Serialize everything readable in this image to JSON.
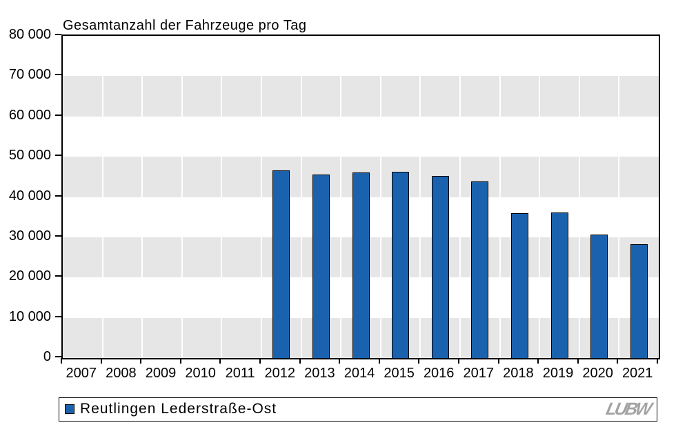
{
  "title": "Gesamtanzahl der Fahrzeuge pro Tag",
  "legend": {
    "series_label": "Reutlingen Lederstraße-Ost"
  },
  "logo": {
    "text": "LUBW"
  },
  "colors": {
    "bar_fill": "#1B62AE",
    "bar_outline": "#000000",
    "band_gray": "#E6E6E6",
    "background": "#FFFFFF",
    "axis": "#000000",
    "logo_gray": "#A3A3A3"
  },
  "chart_data": {
    "type": "bar",
    "title": "Gesamtanzahl der Fahrzeuge pro Tag",
    "xlabel": "",
    "ylabel": "",
    "categories": [
      "2007",
      "2008",
      "2009",
      "2010",
      "2011",
      "2012",
      "2013",
      "2014",
      "2015",
      "2016",
      "2017",
      "2018",
      "2019",
      "2020",
      "2021"
    ],
    "series": [
      {
        "name": "Reutlingen Lederstraße-Ost",
        "color": "#1B62AE",
        "values": [
          null,
          null,
          null,
          null,
          null,
          46600,
          45600,
          46000,
          46300,
          45300,
          43800,
          36000,
          36200,
          30700,
          28200
        ]
      }
    ],
    "ylim": [
      0,
      80000
    ],
    "ytick_step": 10000,
    "ytick_labels": [
      "0",
      "10 000",
      "20 000",
      "30 000",
      "40 000",
      "50 000",
      "60 000",
      "70 000",
      "80 000"
    ],
    "grid": "alternating-horizontal-bands",
    "band_colors": [
      "#FFFFFF",
      "#E6E6E6"
    ],
    "legend_position": "bottom-left"
  }
}
